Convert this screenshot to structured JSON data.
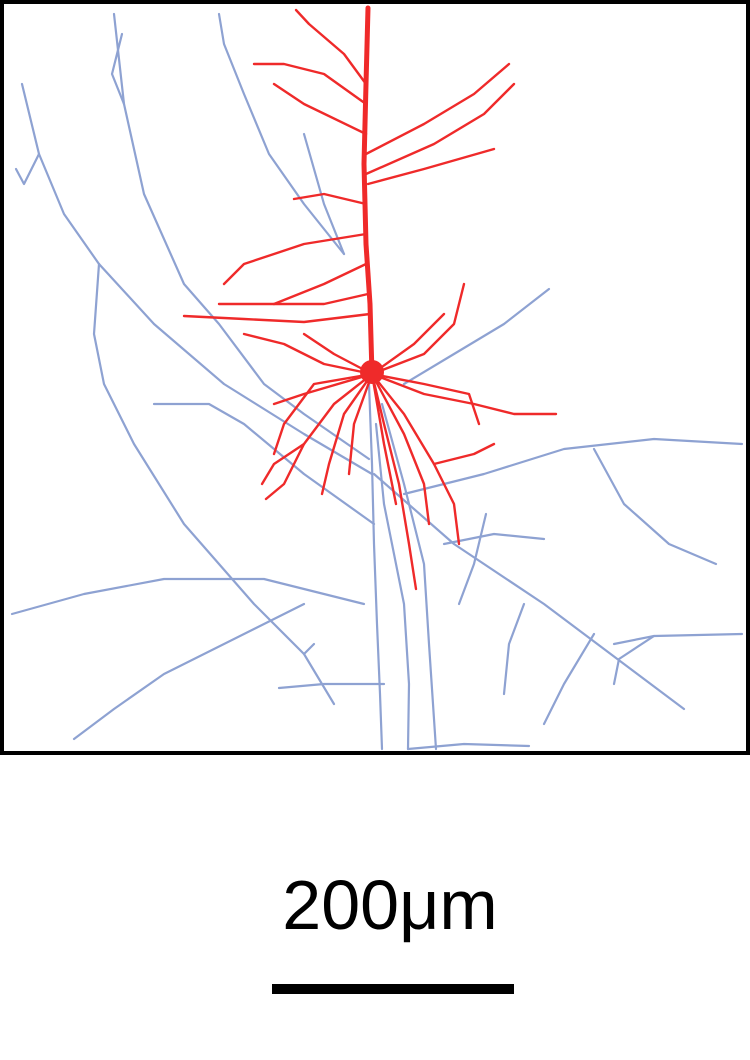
{
  "figure": {
    "colors": {
      "dendrite": "#ef2a2a",
      "axon": "#8ea2d2",
      "frame": "#000000"
    }
  },
  "scale_bar": {
    "label": "200μm"
  }
}
